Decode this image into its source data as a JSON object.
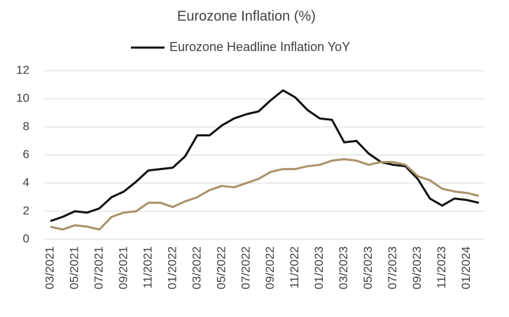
{
  "chart_data": {
    "type": "line",
    "title": "Eurozone Inflation (%)",
    "categories": [
      "03/2021",
      null,
      "05/2021",
      null,
      "07/2021",
      null,
      "09/2021",
      null,
      "11/2021",
      null,
      "01/2022",
      null,
      "03/2022",
      null,
      "05/2022",
      null,
      "07/2022",
      null,
      "09/2022",
      null,
      "11/2022",
      null,
      "01/2023",
      null,
      "03/2023",
      null,
      "05/2023",
      null,
      "07/2023",
      null,
      "09/2023",
      null,
      "11/2023",
      null,
      "01/2024",
      null
    ],
    "series": [
      {
        "name": "Eurozone Headline Inflation YoY",
        "color": "#111111",
        "values": [
          1.3,
          1.6,
          2.0,
          1.9,
          2.2,
          3.0,
          3.4,
          4.1,
          4.9,
          5.0,
          5.1,
          5.9,
          7.4,
          7.4,
          8.1,
          8.6,
          8.9,
          9.1,
          9.9,
          10.6,
          10.1,
          9.2,
          8.6,
          8.5,
          6.9,
          7.0,
          6.1,
          5.5,
          5.3,
          5.2,
          4.3,
          2.9,
          2.4,
          2.9,
          2.8,
          2.6
        ]
      },
      {
        "color": "#a99169",
        "values": [
          0.9,
          0.7,
          1.0,
          0.9,
          0.7,
          1.6,
          1.9,
          2.0,
          2.6,
          2.6,
          2.3,
          2.7,
          3.0,
          3.5,
          3.8,
          3.7,
          4.0,
          4.3,
          4.8,
          5.0,
          5.0,
          5.2,
          5.3,
          5.6,
          5.7,
          5.6,
          5.3,
          5.5,
          5.5,
          5.3,
          4.5,
          4.2,
          3.6,
          3.4,
          3.3,
          3.1
        ]
      }
    ],
    "ylim": [
      0,
      12
    ],
    "yticks": [
      0,
      2,
      4,
      6,
      8,
      10,
      12
    ],
    "grid": true,
    "legend": "top"
  }
}
